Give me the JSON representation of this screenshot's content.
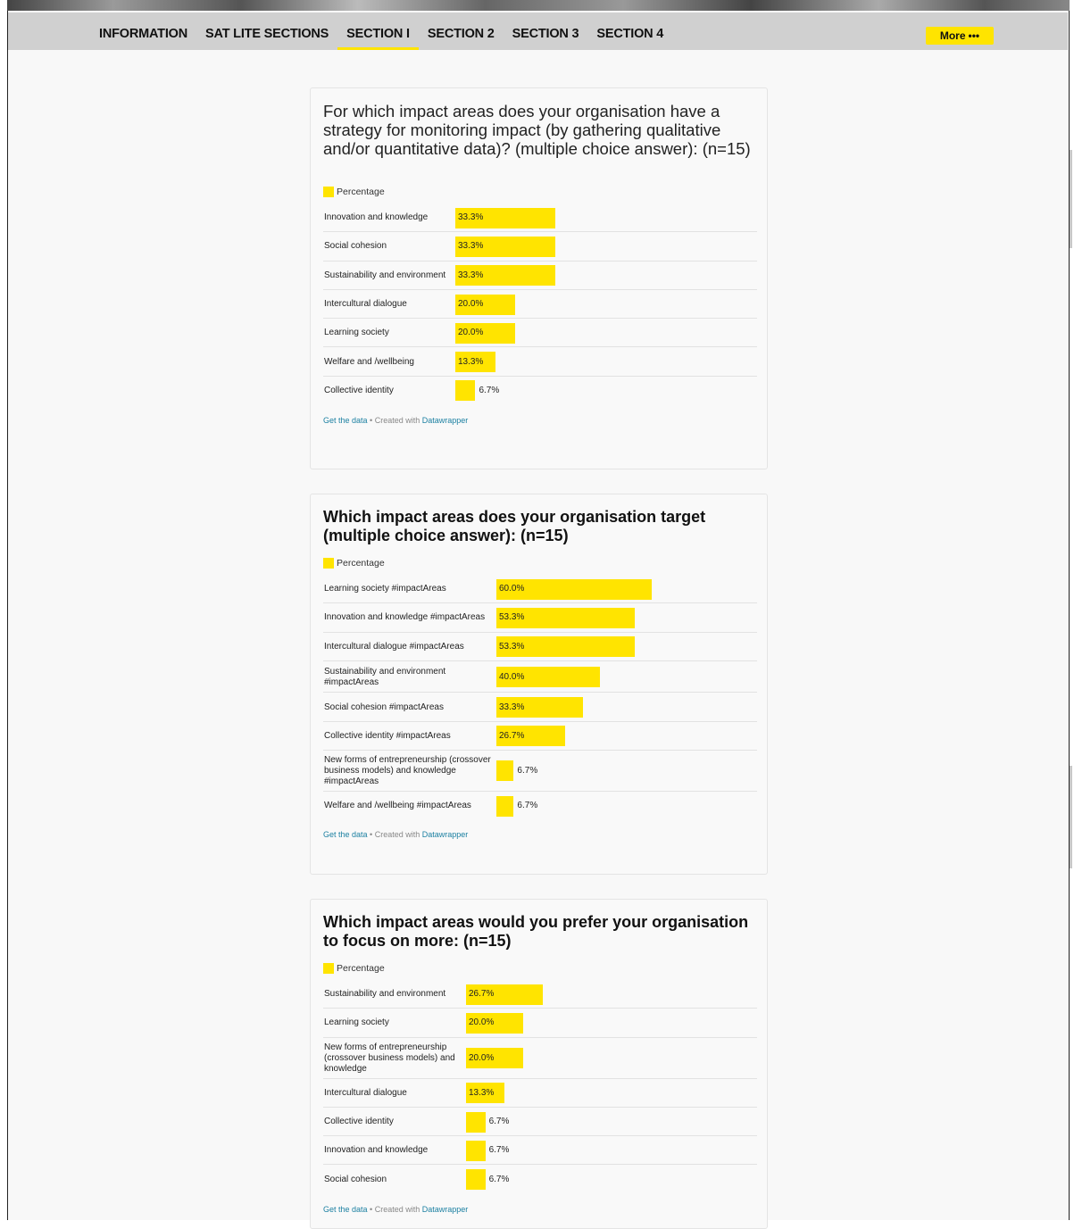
{
  "nav": {
    "items": [
      "INFORMATION",
      "SAT LITE SECTIONS",
      "SECTION I",
      "SECTION 2",
      "SECTION 3",
      "SECTION 4"
    ],
    "active_index": 2,
    "more_label": "More",
    "more_dots": "•••"
  },
  "footer": {
    "get_data": "Get the data",
    "separator": " • Created with ",
    "datawrapper": "Datawrapper"
  },
  "chart_data": [
    {
      "type": "bar",
      "title": "For which impact areas does your organisation have a strategy for monitoring impact (by gathering qualitative and/or quantitative data)? (multiple choice answer): (n=15)",
      "series": [
        {
          "name": "Percentage"
        }
      ],
      "categories": [
        "Innovation and knowledge",
        "Social cohesion",
        "Sustainability and environment",
        "Intercultural dialogue",
        "Learning society",
        "Welfare and /wellbeing",
        "Collective identity"
      ],
      "values": [
        33.3,
        33.3,
        33.3,
        20.0,
        20.0,
        13.3,
        6.7
      ],
      "value_labels": [
        "33.3%",
        "33.3%",
        "33.3%",
        "20.0%",
        "20.0%",
        "13.3%",
        "6.7%"
      ]
    },
    {
      "type": "bar",
      "title": "Which impact areas does your organisation target (multiple choice answer): (n=15)",
      "series": [
        {
          "name": "Percentage"
        }
      ],
      "categories": [
        "Learning society #impactAreas",
        "Innovation and knowledge #impactAreas",
        "Intercultural dialogue #impactAreas",
        "Sustainability and environment #impactAreas",
        "Social cohesion #impactAreas",
        "Collective identity #impactAreas",
        "New forms of entrepreneurship (crossover business models) and knowledge #impactAreas",
        "Welfare and /wellbeing #impactAreas"
      ],
      "values": [
        60.0,
        53.3,
        53.3,
        40.0,
        33.3,
        26.7,
        6.7,
        6.7
      ],
      "value_labels": [
        "60.0%",
        "53.3%",
        "53.3%",
        "40.0%",
        "33.3%",
        "26.7%",
        "6.7%",
        "6.7%"
      ]
    },
    {
      "type": "bar",
      "title": "Which impact areas would you prefer your organisation to focus on more: (n=15)",
      "series": [
        {
          "name": "Percentage"
        }
      ],
      "categories": [
        "Sustainability and environment",
        "Learning society",
        "New forms of entrepreneurship (crossover business models) and knowledge",
        "Intercultural dialogue",
        "Collective identity",
        "Innovation and knowledge",
        "Social cohesion"
      ],
      "values": [
        26.7,
        20.0,
        20.0,
        13.3,
        6.7,
        6.7,
        6.7
      ],
      "value_labels": [
        "26.7%",
        "20.0%",
        "20.0%",
        "13.3%",
        "6.7%",
        "6.7%",
        "6.7%"
      ]
    }
  ],
  "colors": {
    "bar": "#ffe400",
    "link": "#1d81a2"
  }
}
